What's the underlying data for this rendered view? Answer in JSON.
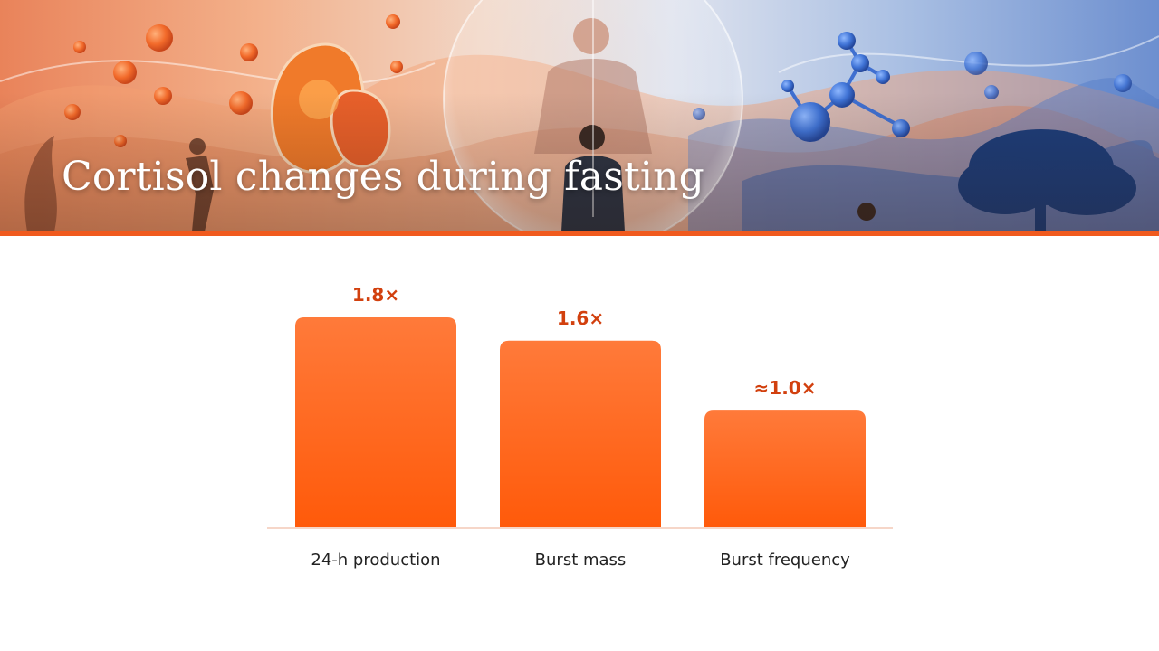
{
  "header": {
    "title": "Cortisol changes during fasting"
  },
  "colors": {
    "accent": "#f05a1e",
    "bar_top": "#ff7a3a",
    "bar_bottom": "#ff5a0a",
    "value_label": "#d2400e",
    "category_label": "#222222",
    "baseline": "#f6d6c8"
  },
  "banner_icons": [
    "adrenal-gland-icon",
    "human-figure-icon",
    "molecule-icon",
    "runner-silhouette-icon",
    "tree-silhouette-icon"
  ],
  "chart_data": {
    "type": "bar",
    "categories": [
      "24-h production",
      "Burst mass",
      "Burst frequency"
    ],
    "values": [
      1.8,
      1.6,
      1.0
    ],
    "value_labels": [
      "1.8×",
      "1.6×",
      "≈1.0×"
    ],
    "ylim": [
      0,
      1.8
    ],
    "grid": false,
    "legend": "none"
  }
}
